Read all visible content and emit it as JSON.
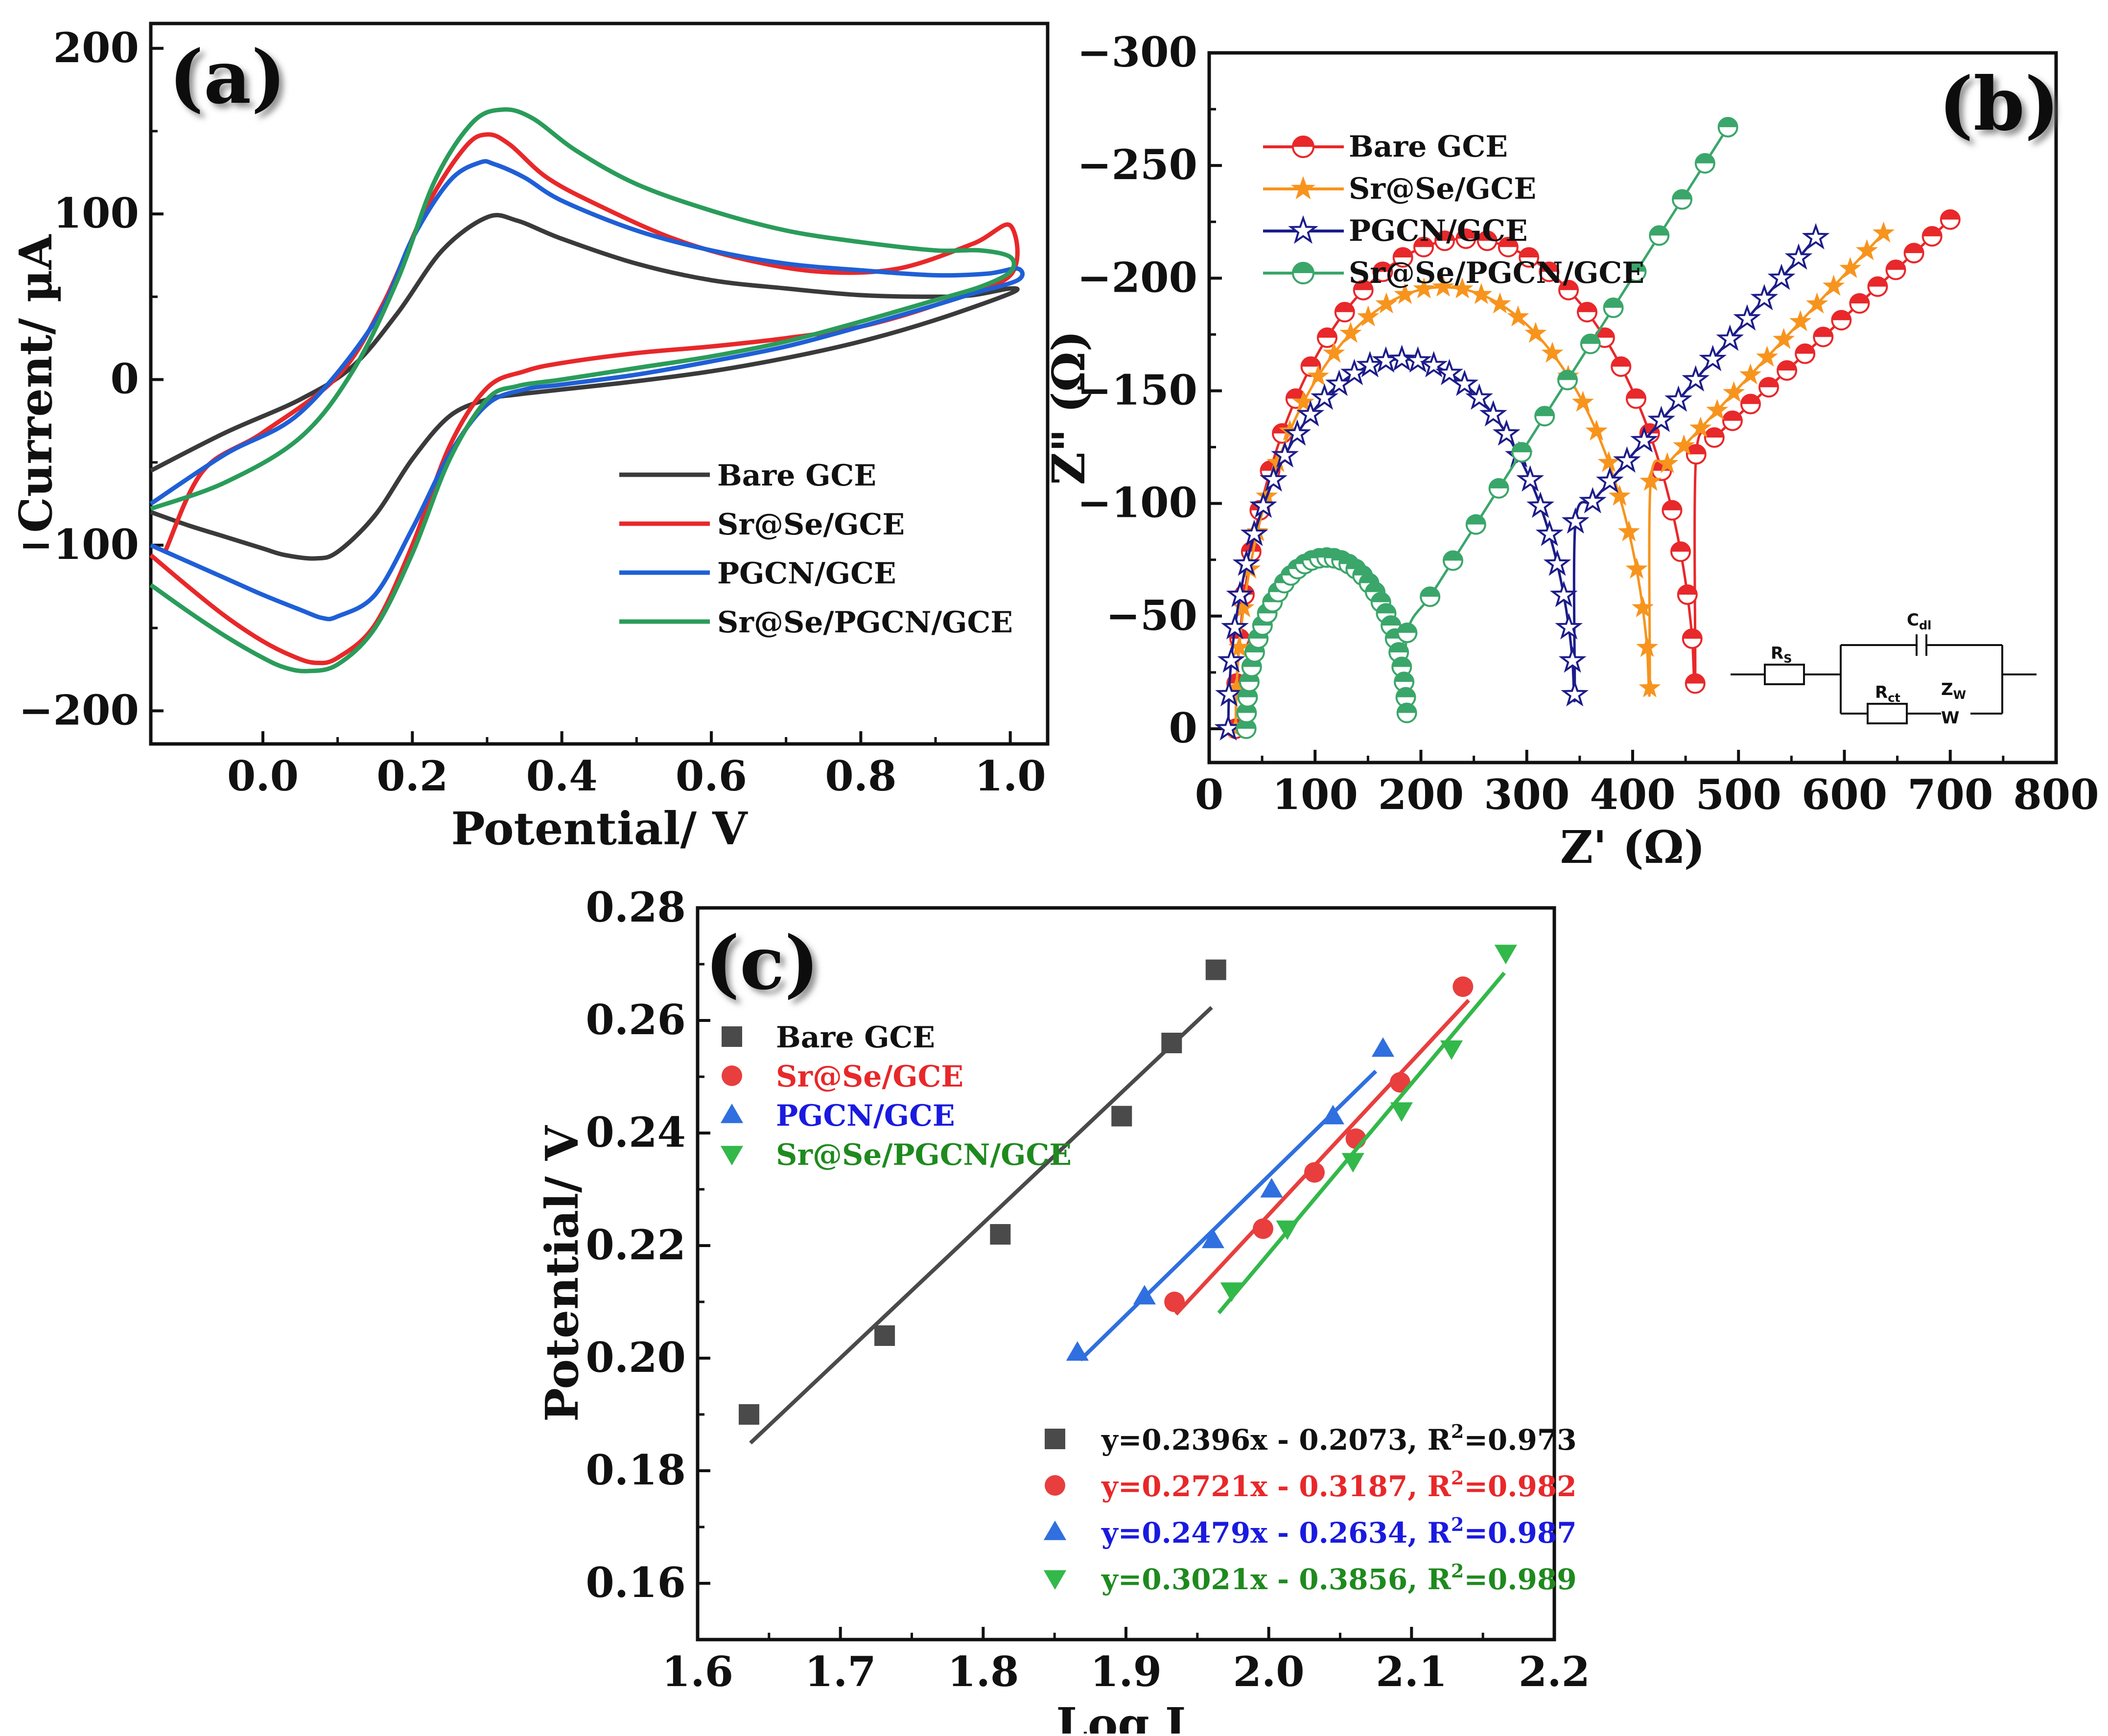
{
  "colors": {
    "bare": "#3a3a3a",
    "srse": "#e8282a",
    "pgcn": "#1f5fd6",
    "srse_pgcn": "#2a9c5a",
    "orange": "#f7941d",
    "navy": "#1c1c8a",
    "eis_green": "#3aa66a",
    "fit_green": "#28a745",
    "square": "#4a4a4a",
    "circle_red": "#e83e3e",
    "tri_blue": "#2f6fdf",
    "tri_green": "#33b84a",
    "text_red": "#e8282a",
    "text_blue": "#1a1ae0",
    "text_green": "#1e8a1e",
    "text_black": "#111111"
  },
  "chart_data": [
    {
      "id": "a",
      "type": "line",
      "panel_label": "(a)",
      "xlabel": "Potential/ V",
      "ylabel": "Current/ µA",
      "xlim": [
        -0.15,
        1.05
      ],
      "ylim": [
        -220,
        215
      ],
      "xticks": [
        0.0,
        0.2,
        0.4,
        0.6,
        0.8,
        1.0
      ],
      "xtick_labels": [
        "0.0",
        "0.2",
        "0.4",
        "0.6",
        "0.8",
        "1.0"
      ],
      "yticks": [
        200,
        100,
        0,
        -100,
        -200
      ],
      "ytick_labels": [
        "200",
        "100",
        "0",
        "−100",
        "−200"
      ],
      "legend": [
        "Bare GCE",
        "Sr@Se/GCE",
        "PGCN/GCE",
        "Sr@Se/PGCN/GCE"
      ],
      "legend_position": "lower-right",
      "series": [
        {
          "name": "Bare GCE",
          "color_key": "bare",
          "x": [
            -0.15,
            -0.05,
            0.05,
            0.12,
            0.18,
            0.24,
            0.3,
            0.34,
            0.4,
            0.5,
            0.6,
            0.7,
            0.8,
            0.9,
            0.95,
            1.0,
            1.0,
            0.9,
            0.8,
            0.7,
            0.6,
            0.5,
            0.4,
            0.34,
            0.3,
            0.25,
            0.2,
            0.15,
            0.1,
            0.07,
            0.03,
            0.0,
            -0.05,
            -0.1,
            -0.15
          ],
          "y": [
            -55,
            -32,
            -12,
            8,
            40,
            78,
            98,
            96,
            85,
            70,
            60,
            55,
            51,
            50,
            51,
            55,
            52,
            36,
            23,
            13,
            5,
            -1,
            -6,
            -9,
            -12,
            -22,
            -48,
            -82,
            -104,
            -108,
            -106,
            -102,
            -95,
            -88,
            -80
          ]
        },
        {
          "name": "Sr@Se/GCE",
          "color_key": "srse",
          "x": [
            -0.13,
            -0.08,
            0.0,
            0.1,
            0.16,
            0.22,
            0.27,
            0.3,
            0.33,
            0.38,
            0.45,
            0.55,
            0.65,
            0.75,
            0.85,
            0.95,
            1.0,
            1.0,
            0.9,
            0.8,
            0.7,
            0.6,
            0.5,
            0.4,
            0.35,
            0.3,
            0.25,
            0.2,
            0.15,
            0.1,
            0.07,
            0.04,
            0.0,
            -0.05,
            -0.1,
            -0.15
          ],
          "y": [
            -103,
            -55,
            -32,
            2,
            45,
            105,
            140,
            148,
            142,
            122,
            105,
            85,
            72,
            65,
            67,
            82,
            93,
            63,
            45,
            32,
            25,
            20,
            16,
            10,
            5,
            -5,
            -40,
            -100,
            -148,
            -168,
            -171,
            -167,
            -158,
            -143,
            -125,
            -106
          ]
        },
        {
          "name": "PGCN/GCE",
          "color_key": "pgcn",
          "x": [
            -0.15,
            -0.05,
            0.05,
            0.15,
            0.2,
            0.25,
            0.29,
            0.31,
            0.35,
            0.4,
            0.5,
            0.6,
            0.7,
            0.8,
            0.9,
            0.97,
            1.01,
            1.01,
            0.95,
            0.9,
            0.8,
            0.7,
            0.6,
            0.5,
            0.4,
            0.35,
            0.3,
            0.25,
            0.2,
            0.15,
            0.1,
            0.08,
            0.05,
            0.0,
            -0.05,
            -0.1,
            -0.15
          ],
          "y": [
            -75,
            -45,
            -20,
            35,
            85,
            120,
            131,
            130,
            122,
            108,
            90,
            78,
            70,
            66,
            63,
            64,
            67,
            60,
            52,
            45,
            32,
            20,
            11,
            3,
            -3,
            -6,
            -15,
            -45,
            -90,
            -130,
            -143,
            -144,
            -139,
            -130,
            -120,
            -110,
            -100
          ]
        },
        {
          "name": "Sr@Se/PGCN/GCE",
          "color_key": "srse_pgcn",
          "x": [
            -0.15,
            -0.05,
            0.05,
            0.12,
            0.18,
            0.23,
            0.28,
            0.32,
            0.36,
            0.42,
            0.5,
            0.6,
            0.7,
            0.8,
            0.9,
            0.96,
            1.0,
            1.0,
            0.96,
            0.9,
            0.8,
            0.7,
            0.6,
            0.5,
            0.4,
            0.34,
            0.3,
            0.25,
            0.2,
            0.15,
            0.1,
            0.06,
            0.03,
            0.0,
            -0.05,
            -0.1,
            -0.15
          ],
          "y": [
            -78,
            -62,
            -35,
            5,
            60,
            120,
            155,
            163,
            158,
            138,
            118,
            102,
            90,
            83,
            78,
            78,
            74,
            65,
            56,
            48,
            35,
            23,
            14,
            7,
            0,
            -4,
            -12,
            -48,
            -105,
            -150,
            -172,
            -176,
            -174,
            -168,
            -155,
            -140,
            -124
          ]
        }
      ]
    },
    {
      "id": "b",
      "type": "line",
      "panel_label": "(b)",
      "xlabel": "Z' (Ω)",
      "ylabel": "Z\" (Ω)",
      "xlim": [
        0,
        800
      ],
      "ylim": [
        15,
        -300
      ],
      "xticks": [
        0,
        100,
        200,
        300,
        400,
        500,
        600,
        700,
        800
      ],
      "xtick_labels": [
        "0",
        "100",
        "200",
        "300",
        "400",
        "500",
        "600",
        "700",
        "800"
      ],
      "yticks": [
        -300,
        -250,
        -200,
        -150,
        -100,
        -50,
        0
      ],
      "ytick_labels": [
        "−300",
        "−250",
        "−200",
        "−150",
        "−100",
        "−50",
        "0"
      ],
      "legend": [
        "Bare GCE",
        "Sr@Se/GCE",
        "PGCN/GCE",
        "Sr@Se/PGCN/GCE"
      ],
      "legend_position": "top-left",
      "circuit_labels": {
        "rs": "R",
        "rs_sub": "S",
        "cdl": "C",
        "cdl_sub": "dl",
        "rct": "R",
        "rct_sub": "ct",
        "zw": "Z",
        "zw_sub": "W",
        "w": "W"
      },
      "series": [
        {
          "name": "Bare GCE",
          "marker": "half-circle",
          "color_key": "srse",
          "rs": 25,
          "rct": 435,
          "tail_x": 700,
          "tail_y": -226
        },
        {
          "name": "Sr@Se/GCE",
          "marker": "star",
          "color_key": "orange",
          "rs": 25,
          "rct": 392,
          "tail_x": 637,
          "tail_y": -220
        },
        {
          "name": "PGCN/GCE",
          "marker": "open-star",
          "color_key": "navy",
          "rs": 18,
          "rct": 328,
          "tail_x": 573,
          "tail_y": -218
        },
        {
          "name": "Sr@Se/PGCN/GCE",
          "marker": "half-circle",
          "color_key": "eis_green",
          "rs": 35,
          "rct": 152,
          "tail_x": 490,
          "tail_y": -267
        }
      ]
    },
    {
      "id": "c",
      "type": "scatter",
      "panel_label": "(c)",
      "xlabel": "Log I",
      "ylabel": "Potential/ V",
      "xlim": [
        1.6,
        2.2
      ],
      "ylim": [
        0.15,
        0.28
      ],
      "xticks": [
        1.6,
        1.7,
        1.8,
        1.9,
        2.0,
        2.1,
        2.2
      ],
      "xtick_labels": [
        "1.6",
        "1.7",
        "1.8",
        "1.9",
        "2.0",
        "2.1",
        "2.2"
      ],
      "yticks": [
        0.16,
        0.18,
        0.2,
        0.22,
        0.24,
        0.26,
        0.28
      ],
      "ytick_labels": [
        "0.16",
        "0.18",
        "0.20",
        "0.22",
        "0.24",
        "0.26",
        "0.28"
      ],
      "legend": [
        "Bare GCE",
        "Sr@Se/GCE",
        "PGCN/GCE",
        "Sr@Se/PGCN/GCE"
      ],
      "legend_position": "top-left",
      "series": [
        {
          "name": "Bare GCE",
          "marker": "square",
          "color_key": "square",
          "text_color_key": "text_black",
          "slope": 0.2396,
          "intercept": -0.2073,
          "fit_range": [
            1.637,
            1.96
          ],
          "equation": "y=0.2396x - 0.2073, R",
          "r2": "=0.973",
          "x": [
            1.636,
            1.731,
            1.812,
            1.897,
            1.932,
            1.963
          ],
          "y": [
            0.19,
            0.204,
            0.222,
            0.243,
            0.256,
            0.269
          ]
        },
        {
          "name": "Sr@Se/GCE",
          "marker": "circle",
          "color_key": "circle_red",
          "text_color_key": "text_red",
          "slope": 0.2721,
          "intercept": -0.3187,
          "fit_range": [
            1.935,
            2.14
          ],
          "equation": "y=0.2721x - 0.3187, R",
          "r2": "=0.982",
          "x": [
            1.934,
            1.996,
            2.032,
            2.061,
            2.092,
            2.136
          ],
          "y": [
            0.21,
            0.223,
            0.233,
            0.239,
            0.249,
            0.266
          ]
        },
        {
          "name": "PGCN/GCE",
          "marker": "triangle-up",
          "color_key": "tri_blue",
          "text_color_key": "text_blue",
          "slope": 0.2479,
          "intercept": -0.2634,
          "fit_range": [
            1.868,
            2.075
          ],
          "equation": "y=0.2479x - 0.2634, R",
          "r2": "=0.987",
          "x": [
            1.866,
            1.913,
            1.961,
            2.002,
            2.045,
            2.08
          ],
          "y": [
            0.201,
            0.211,
            0.221,
            0.23,
            0.243,
            0.255
          ]
        },
        {
          "name": "Sr@Se/PGCN/GCE",
          "marker": "triangle-down",
          "color_key": "tri_green",
          "text_color_key": "text_green",
          "slope": 0.3021,
          "intercept": -0.3856,
          "fit_range": [
            1.965,
            2.165
          ],
          "equation": "y=0.3021x - 0.3856, R",
          "r2": "=0.989",
          "x": [
            1.974,
            2.013,
            2.059,
            2.093,
            2.128,
            2.166
          ],
          "y": [
            0.212,
            0.223,
            0.235,
            0.244,
            0.255,
            0.272
          ]
        }
      ]
    }
  ]
}
